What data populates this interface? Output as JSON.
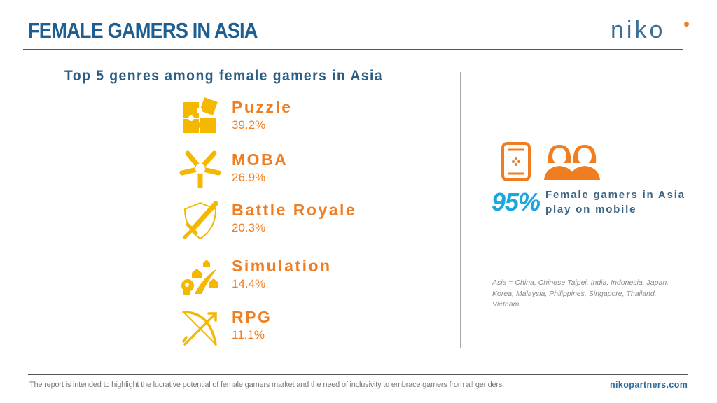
{
  "header": {
    "title": "FEMALE GAMERS IN ASIA",
    "logo": "niko"
  },
  "subtitle": "Top 5 genres among female gamers in Asia",
  "genres": [
    {
      "name": "Puzzle",
      "pct": "39.2%",
      "icon": "puzzle-icon"
    },
    {
      "name": "MOBA",
      "pct": "26.9%",
      "icon": "hands-icon"
    },
    {
      "name": "Battle Royale",
      "pct": "20.3%",
      "icon": "shield-sword-icon"
    },
    {
      "name": "Simulation",
      "pct": "14.4%",
      "icon": "simulation-icon"
    },
    {
      "name": "RPG",
      "pct": "11.1%",
      "icon": "bow-arrow-icon"
    }
  ],
  "mobile": {
    "value": "95%",
    "line1": "Female gamers in Asia",
    "line2": "play on mobile",
    "icons": [
      "mobile-phone-icon",
      "women-icon"
    ]
  },
  "note": "Asia = China, Chinese Taipei, India, Indonesia, Japan, Korea, Malaysia, Philippines, Singapore, Thailand, Vietnam",
  "footer": {
    "disclaimer": "The report is intended to highlight the lucrative potential of female gamers market and the need of inclusivity to embrace gamers from all genders.",
    "site": "nikopartners.com"
  },
  "colors": {
    "title": "#1d5f92",
    "accent": "#f07d1f",
    "icon": "#f5b800",
    "highlight": "#1aa7e0"
  }
}
